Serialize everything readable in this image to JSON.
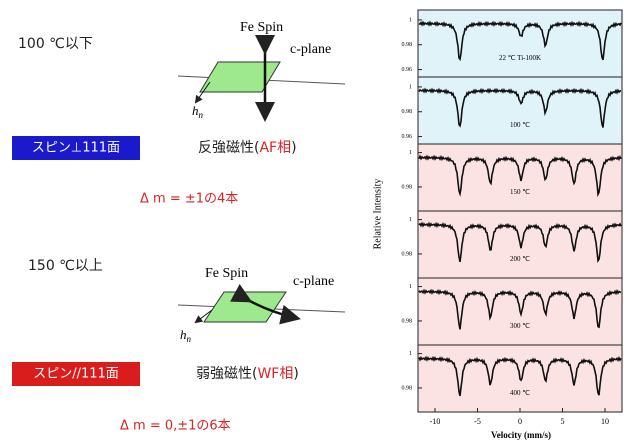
{
  "top": {
    "heading": "100 ℃以下",
    "spin_label": "Fe Spin",
    "plane_label": "c-plane",
    "field_label": "h",
    "field_sub": "n",
    "box_label": "スピン⊥111面",
    "phase_text": "反強磁性(",
    "phase_red": "AF相",
    "phase_close": ")",
    "lines_text": "Δ m = ±1の4本"
  },
  "bottom": {
    "heading": "150 ℃以上",
    "spin_label": "Fe Spin",
    "plane_label": "c-plane",
    "field_label": "h",
    "field_sub": "n",
    "box_label": "スピン//111面",
    "phase_text": "弱強磁性(",
    "phase_red": "WF相",
    "phase_close": ")",
    "lines_text": "Δ m = 0,±1の6本"
  },
  "spectra": {
    "y_label": "Relative Intensity",
    "x_label": "Velocity (mm/s)",
    "xlim": [
      -12,
      12
    ],
    "xticks": [
      -10,
      -5,
      0,
      5,
      10
    ],
    "panels": [
      {
        "label": "22 ℃ Ti-100K",
        "color": "#dff3f8",
        "ylim": [
          0.954,
          1.008
        ],
        "yticks": [
          1,
          0.98,
          0.96
        ]
      },
      {
        "label": "100 ℃",
        "color": "#dff3f8",
        "ylim": [
          0.954,
          1.008
        ],
        "yticks": [
          1,
          0.98,
          0.96
        ]
      },
      {
        "label": "150 ℃",
        "color": "#fbe3e3",
        "ylim": [
          0.966,
          1.005
        ],
        "yticks": [
          1,
          0.98
        ]
      },
      {
        "label": "200 ℃",
        "color": "#fbe3e3",
        "ylim": [
          0.966,
          1.005
        ],
        "yticks": [
          1,
          0.98
        ]
      },
      {
        "label": "300 ℃",
        "color": "#fbe3e3",
        "ylim": [
          0.966,
          1.005
        ],
        "yticks": [
          1,
          0.98
        ]
      },
      {
        "label": "400 ℃",
        "color": "#fbe3e3",
        "ylim": [
          0.966,
          1.005
        ],
        "yticks": [
          1,
          0.98
        ]
      }
    ]
  }
}
